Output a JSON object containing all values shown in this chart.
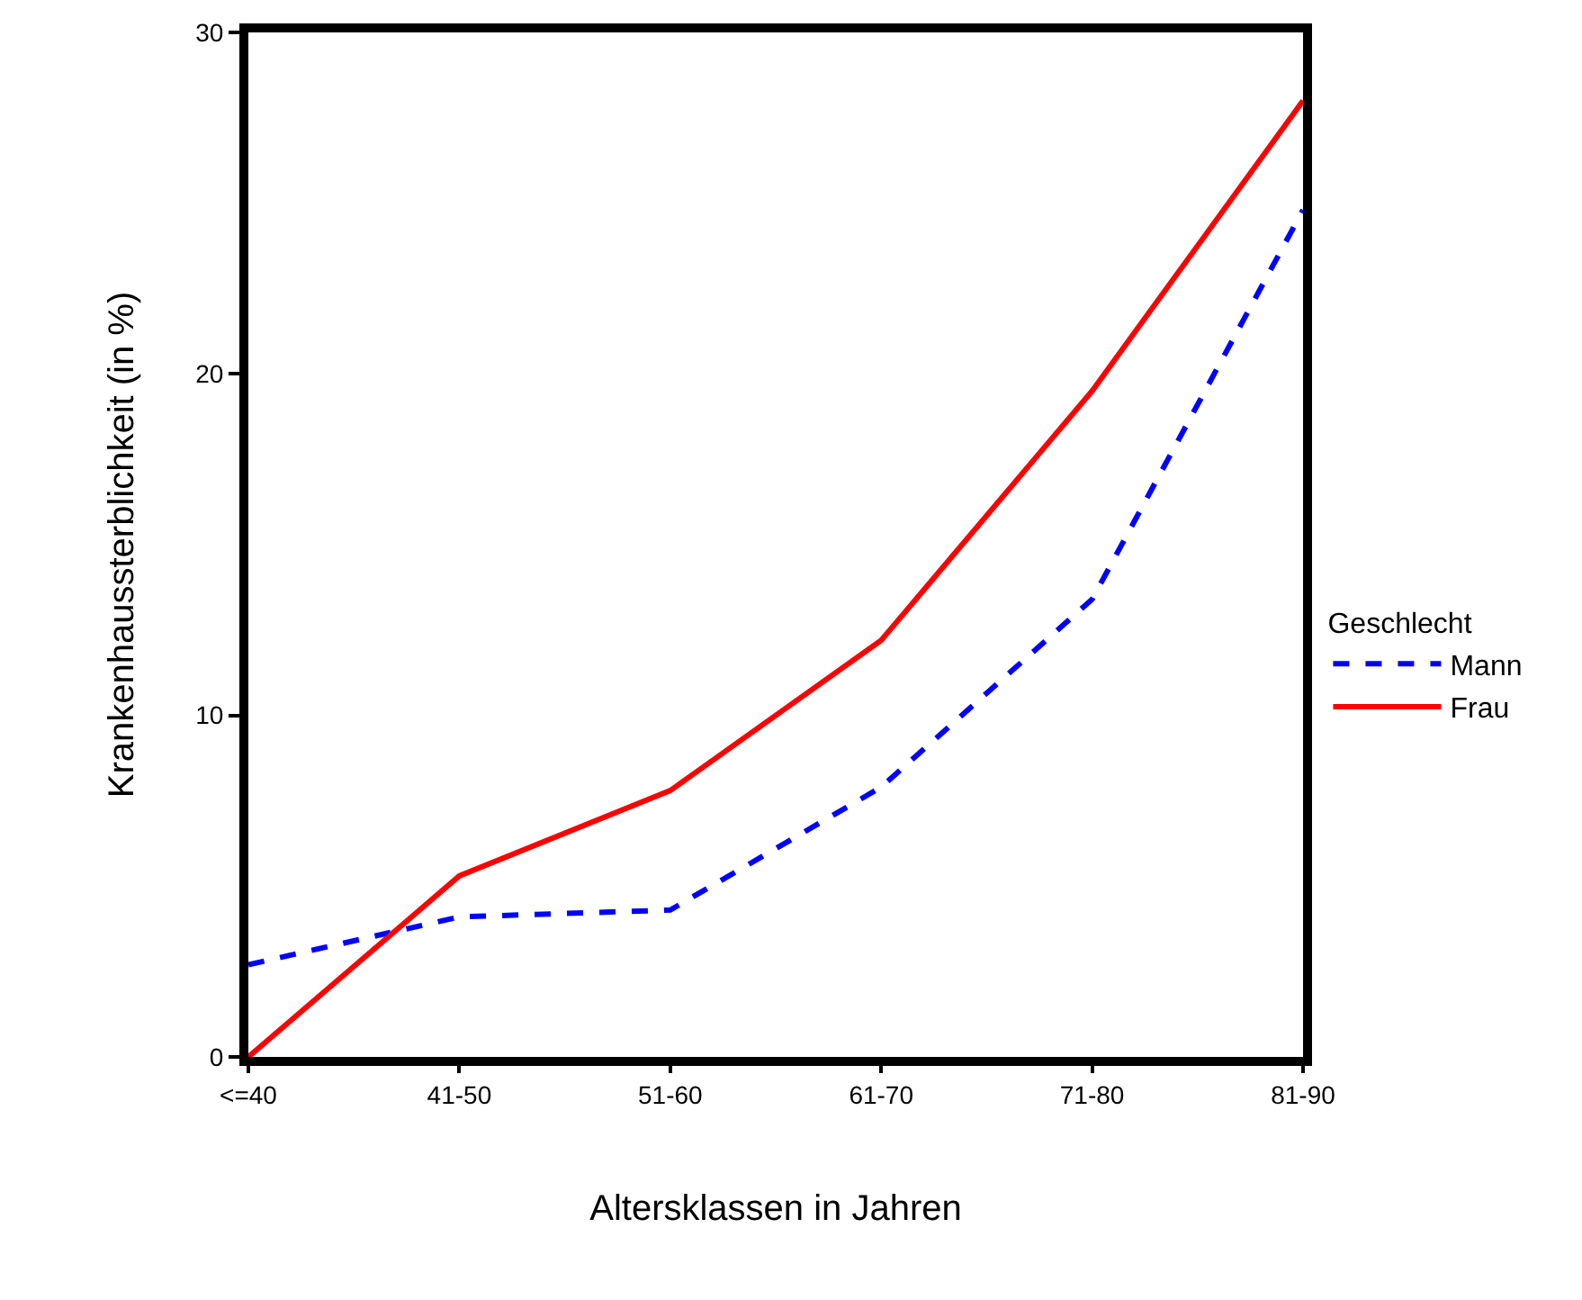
{
  "chart_data": {
    "type": "line",
    "xlabel": "Altersklassen in Jahren",
    "ylabel": "Krankenhaussterblichkeit (in %)",
    "legend_title": "Geschlecht",
    "categories": [
      "<=40",
      "41-50",
      "51-60",
      "61-70",
      "71-80",
      "81-90"
    ],
    "series": [
      {
        "name": "Mann",
        "color": "#0000ff",
        "line_style": "dashed",
        "values": [
          2.7,
          4.1,
          4.3,
          7.9,
          13.4,
          24.8
        ]
      },
      {
        "name": "Frau",
        "color": "#ff0000",
        "line_style": "solid",
        "values": [
          0,
          5.3,
          7.8,
          12.2,
          19.5,
          28.0
        ]
      }
    ],
    "ylim": [
      0,
      30
    ],
    "yticks": [
      0,
      10,
      20,
      30
    ],
    "legend": "right"
  }
}
